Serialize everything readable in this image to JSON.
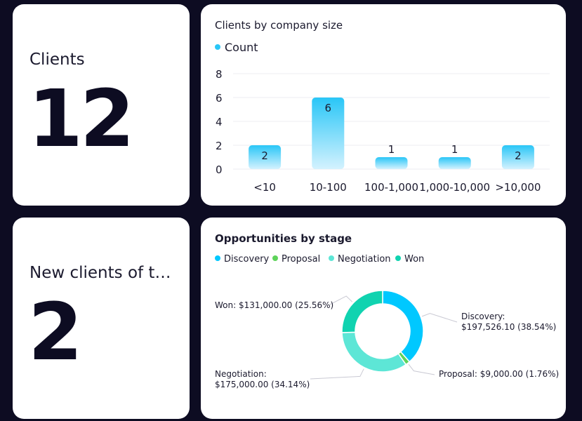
{
  "kpis": {
    "clients": {
      "label": "Clients",
      "value": "12"
    },
    "new_clients": {
      "label": "New clients of th…",
      "value": "2"
    }
  },
  "colors": {
    "background": "#0d0c22",
    "card": "#ffffff",
    "bar_top": "#29c6f7",
    "bar_bottom": "#d4f2fe",
    "discovery": "#00c8ff",
    "proposal": "#5ed35a",
    "negotiation": "#5de6d6",
    "won": "#10d3b0"
  },
  "chart_data": [
    {
      "type": "bar",
      "title": "Clients by company size",
      "legend": [
        "Count"
      ],
      "categories": [
        "<10",
        "10-100",
        "100-1,000",
        "1,000-10,000",
        ">10,000"
      ],
      "series": [
        {
          "name": "Count",
          "values": [
            2,
            6,
            1,
            1,
            2
          ]
        }
      ],
      "ylim": [
        0,
        8
      ],
      "yticks": [
        "0",
        "2",
        "4",
        "6",
        "8"
      ],
      "data_labels": [
        "2",
        "6",
        "1",
        "1",
        "2"
      ],
      "xlabel": "",
      "ylabel": ""
    },
    {
      "type": "pie",
      "title": "Opportunities by stage",
      "legend": [
        "Discovery",
        "Proposal",
        "Negotiation",
        "Won"
      ],
      "slices": [
        {
          "name": "Discovery",
          "value": 197526.1,
          "percent": 38.54,
          "label_line1": "Discovery:",
          "label_line2": "$197,526.10 (38.54%)"
        },
        {
          "name": "Proposal",
          "value": 9000.0,
          "percent": 1.76,
          "label_line1": "Proposal: $9,000.00 (1.76%)",
          "label_line2": ""
        },
        {
          "name": "Negotiation",
          "value": 175000.0,
          "percent": 34.14,
          "label_line1": "Negotiation:",
          "label_line2": "$175,000.00 (34.14%)"
        },
        {
          "name": "Won",
          "value": 131000.0,
          "percent": 25.56,
          "label_line1": "Won: $131,000.00 (25.56%)",
          "label_line2": ""
        }
      ]
    }
  ]
}
